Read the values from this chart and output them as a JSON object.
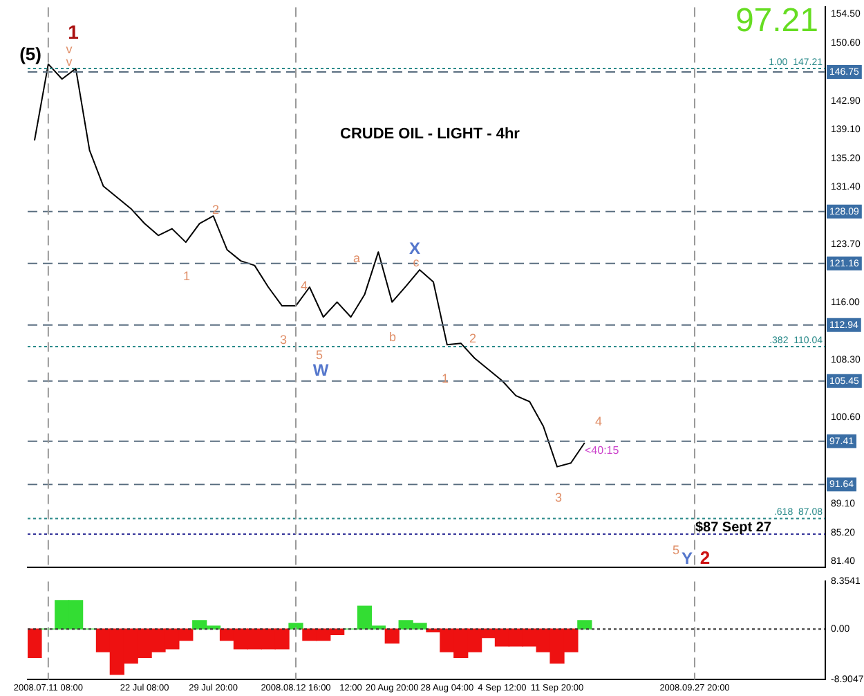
{
  "chart_data": [
    {
      "type": "line",
      "title": "CRUDE OIL - LIGHT - 4hr",
      "categories": [
        null,
        "2008.07.11 08:00",
        null,
        null,
        null,
        null,
        null,
        null,
        "22 Jul 08:00",
        null,
        null,
        null,
        null,
        "29 Jul 20:00",
        null,
        null,
        null,
        null,
        null,
        "2008.08.12 16:00",
        null,
        null,
        null,
        "12:00",
        null,
        null,
        "20 Aug 20:00",
        null,
        null,
        null,
        "28 Aug 04:00",
        null,
        null,
        null,
        "4 Sep 12:00",
        null,
        null,
        null,
        "11 Sep 20:00",
        null,
        null,
        null,
        null,
        null,
        null,
        null,
        null,
        null,
        "2008.09.27 20:00",
        null,
        null,
        null,
        null,
        null,
        null,
        null,
        null,
        null
      ],
      "series": [
        {
          "color": "#000000",
          "values": [
            137.6,
            147.8,
            145.8,
            147.2,
            136.3,
            131.5,
            130,
            128.5,
            126.5,
            124.9,
            125.8,
            124,
            126.5,
            127.5,
            123,
            121.5,
            120.9,
            118,
            115.5,
            115.5,
            118,
            114,
            116,
            114,
            117,
            122.7,
            116,
            118.1,
            120.3,
            118.7,
            110.3,
            110.5,
            108.5,
            107,
            105.5,
            103.5,
            102.7,
            99.4,
            94,
            94.5,
            97.2,
            null,
            null,
            null,
            null,
            null,
            null,
            null,
            null,
            null,
            null,
            null,
            null,
            null,
            null,
            null,
            null,
            null
          ]
        }
      ],
      "ylim": [
        80.6,
        155.4
      ],
      "yticks": [
        {
          "value": 154.5,
          "label": "154.50"
        },
        {
          "value": 150.6,
          "label": "150.60"
        },
        {
          "value": 142.9,
          "label": "142.90"
        },
        {
          "value": 139.1,
          "label": "139.10"
        },
        {
          "value": 135.2,
          "label": "135.20"
        },
        {
          "value": 131.4,
          "label": "131.40"
        },
        {
          "value": 123.7,
          "label": "123.70"
        },
        {
          "value": 116,
          "label": "116.00"
        },
        {
          "value": 108.3,
          "label": "108.30"
        },
        {
          "value": 100.6,
          "label": "100.60"
        },
        {
          "value": 89.1,
          "label": "89.10"
        },
        {
          "value": 85.2,
          "label": "85.20"
        },
        {
          "value": 81.4,
          "label": "81.40"
        }
      ],
      "tick_labels": "y",
      "ref_lines": [
        {
          "axis": "y",
          "value": 146.75,
          "label": "146.75",
          "color": "#5a6e80",
          "line_style": "dashed"
        },
        {
          "axis": "y",
          "value": 128.09,
          "label": "128.09",
          "color": "#5a6e80",
          "line_style": "dashed"
        },
        {
          "axis": "y",
          "value": 121.16,
          "label": "121.16",
          "color": "#5a6e80",
          "line_style": "dashed"
        },
        {
          "axis": "y",
          "value": 112.94,
          "label": "112.94",
          "color": "#5a6e80",
          "line_style": "dashed"
        },
        {
          "axis": "y",
          "value": 105.45,
          "label": "105.45",
          "color": "#5a6e80",
          "line_style": "dashed"
        },
        {
          "axis": "y",
          "value": 97.41,
          "label": "97.41",
          "color": "#5a6e80",
          "line_style": "dashed"
        },
        {
          "axis": "y",
          "value": 91.64,
          "label": "91.64",
          "color": "#5a6e80",
          "line_style": "dashed"
        },
        {
          "axis": "y",
          "value": 147.21,
          "label": "1.00  147.21",
          "color": "#2a8a8a",
          "line_style": "dotted"
        },
        {
          "axis": "y",
          "value": 110.04,
          "label": ".382  110.04",
          "color": "#2a8a8a",
          "line_style": "dotted"
        },
        {
          "axis": "y",
          "value": 87.08,
          "label": ".618  87.08",
          "color": "#2a8a8a",
          "line_style": "dotted"
        },
        {
          "axis": "y",
          "value": 85.0,
          "color": "#333399",
          "line_style": "dotted"
        },
        {
          "axis": "x",
          "value": "2008.07.11 08:00",
          "color": "#999999",
          "line_style": "dashed"
        },
        {
          "axis": "x",
          "value": "2008.08.12 16:00",
          "color": "#999999",
          "line_style": "dashed"
        },
        {
          "axis": "x",
          "value": "2008.09.27 20:00",
          "color": "#999999",
          "line_style": "dashed"
        }
      ],
      "annotations": [
        "97.21",
        "(5)",
        "1",
        "v",
        "v",
        "1",
        "2",
        "3",
        "4",
        "5",
        "W",
        "a",
        "b",
        "c",
        "X",
        "1",
        "2",
        "3",
        "4",
        "<40:15",
        "5",
        "Y",
        "2",
        "$87 Sept 27"
      ]
    },
    {
      "type": "bar",
      "categories": [
        null,
        "2008.07.11 08:00",
        null,
        null,
        null,
        null,
        null,
        null,
        "22 Jul 08:00",
        null,
        null,
        null,
        null,
        "29 Jul 20:00",
        null,
        null,
        null,
        null,
        null,
        "2008.08.12 16:00",
        null,
        null,
        null,
        "12:00",
        null,
        null,
        "20 Aug 20:00",
        null,
        null,
        null,
        "28 Aug 04:00",
        null,
        null,
        null,
        "4 Sep 12:00",
        null,
        null,
        null,
        "11 Sep 20:00",
        null,
        null,
        null,
        null,
        null,
        null,
        null,
        null,
        null,
        "2008.09.27 20:00",
        null,
        null,
        null,
        null,
        null,
        null,
        null,
        null,
        null
      ],
      "values": [
        -5,
        0,
        5,
        5,
        0,
        -4,
        -8,
        -6,
        -5,
        -4,
        -3.5,
        -2,
        1.5,
        0.5,
        -2,
        -3.5,
        -3.5,
        -3.5,
        -3.5,
        1,
        -2,
        -2,
        -1,
        0,
        4,
        0.5,
        -2.5,
        1.5,
        1,
        -0.5,
        -4,
        -5,
        -4,
        -1.5,
        -3,
        -3,
        -3,
        -4,
        -6,
        -4,
        1.5,
        null,
        null,
        null,
        null,
        null,
        null,
        null,
        null,
        null,
        null,
        null,
        null,
        null,
        null,
        null,
        null,
        null
      ],
      "colors": [
        "#ee1111",
        "#33dd33",
        "#33dd33",
        "#33dd33",
        "#33dd33",
        "#ee1111",
        "#ee1111",
        "#ee1111",
        "#ee1111",
        "#ee1111",
        "#ee1111",
        "#ee1111",
        "#33dd33",
        "#33dd33",
        "#ee1111",
        "#ee1111",
        "#ee1111",
        "#ee1111",
        "#ee1111",
        "#33dd33",
        "#ee1111",
        "#ee1111",
        "#ee1111",
        "#33dd33",
        "#33dd33",
        "#33dd33",
        "#ee1111",
        "#33dd33",
        "#33dd33",
        "#ee1111",
        "#ee1111",
        "#ee1111",
        "#ee1111",
        "#ee1111",
        "#ee1111",
        "#ee1111",
        "#ee1111",
        "#ee1111",
        "#ee1111",
        "#ee1111",
        "#33dd33",
        "#ee1111",
        "#ee1111",
        "#ee1111",
        "#ee1111",
        "#ee1111",
        "#ee1111",
        "#ee1111",
        "#ee1111",
        "#ee1111",
        "#ee1111",
        "#ee1111",
        "#ee1111",
        "#ee1111",
        "#ee1111",
        "#ee1111",
        "#ee1111",
        "#ee1111"
      ],
      "ylim": [
        -8.9047,
        8.3541
      ],
      "yticks": [
        8.3541,
        {
          "value": 0,
          "label": "0.00"
        },
        -8.9047
      ],
      "ref_lines": [
        {
          "axis": "y",
          "value": 0,
          "color": "#333333",
          "line_style": "dotted"
        },
        {
          "axis": "x",
          "value": "2008.07.11 08:00",
          "color": "#999999",
          "line_style": "dashed"
        },
        {
          "axis": "x",
          "value": "2008.08.12 16:00",
          "color": "#999999",
          "line_style": "dashed"
        },
        {
          "axis": "x",
          "value": "2008.09.27 20:00",
          "color": "#999999",
          "line_style": "dashed"
        }
      ]
    }
  ]
}
